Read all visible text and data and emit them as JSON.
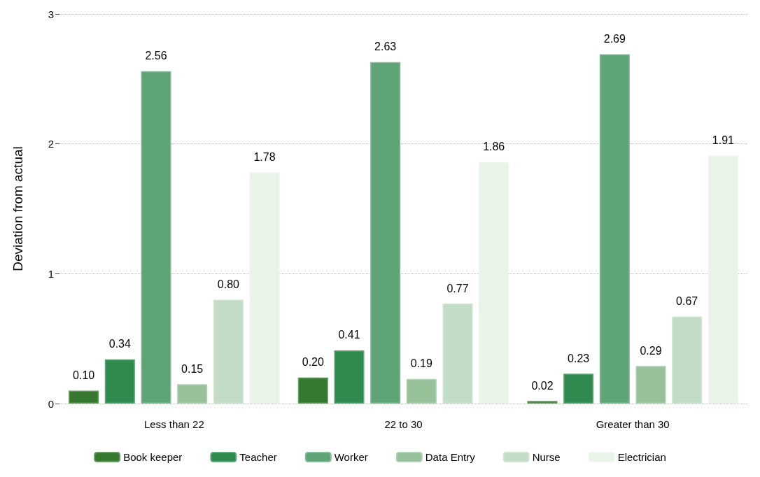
{
  "chart_data": {
    "type": "bar",
    "ylabel": "Deviation from actual",
    "categories": [
      "Less than 22",
      "22 to 30",
      "Greater than 30"
    ],
    "series": [
      {
        "name": "Book keeper",
        "color": "#37782f",
        "values": [
          0.1,
          0.2,
          0.02
        ],
        "value_labels": [
          "0.10",
          "0.20",
          "0.02"
        ]
      },
      {
        "name": "Teacher",
        "color": "#2f8a4f",
        "values": [
          0.34,
          0.41,
          0.23
        ],
        "value_labels": [
          "0.34",
          "0.41",
          "0.23"
        ]
      },
      {
        "name": "Worker",
        "color": "#5fa477",
        "values": [
          2.56,
          2.63,
          2.69
        ],
        "value_labels": [
          "2.56",
          "2.63",
          "2.69"
        ]
      },
      {
        "name": "Data Entry",
        "color": "#97c19b",
        "values": [
          0.15,
          0.19,
          0.29
        ],
        "value_labels": [
          "0.15",
          "0.19",
          "0.29"
        ]
      },
      {
        "name": "Nurse",
        "color": "#c3dcc5",
        "values": [
          0.8,
          0.77,
          0.67
        ],
        "value_labels": [
          "0.80",
          "0.77",
          "0.67"
        ]
      },
      {
        "name": "Electrician",
        "color": "#e9f4e9",
        "values": [
          1.78,
          1.86,
          1.91
        ],
        "value_labels": [
          "1.78",
          "1.86",
          "1.91"
        ]
      }
    ],
    "ylim": [
      0,
      3
    ],
    "yticks": [
      0,
      1,
      2,
      3
    ],
    "grid": "y",
    "legend": "bottom"
  }
}
